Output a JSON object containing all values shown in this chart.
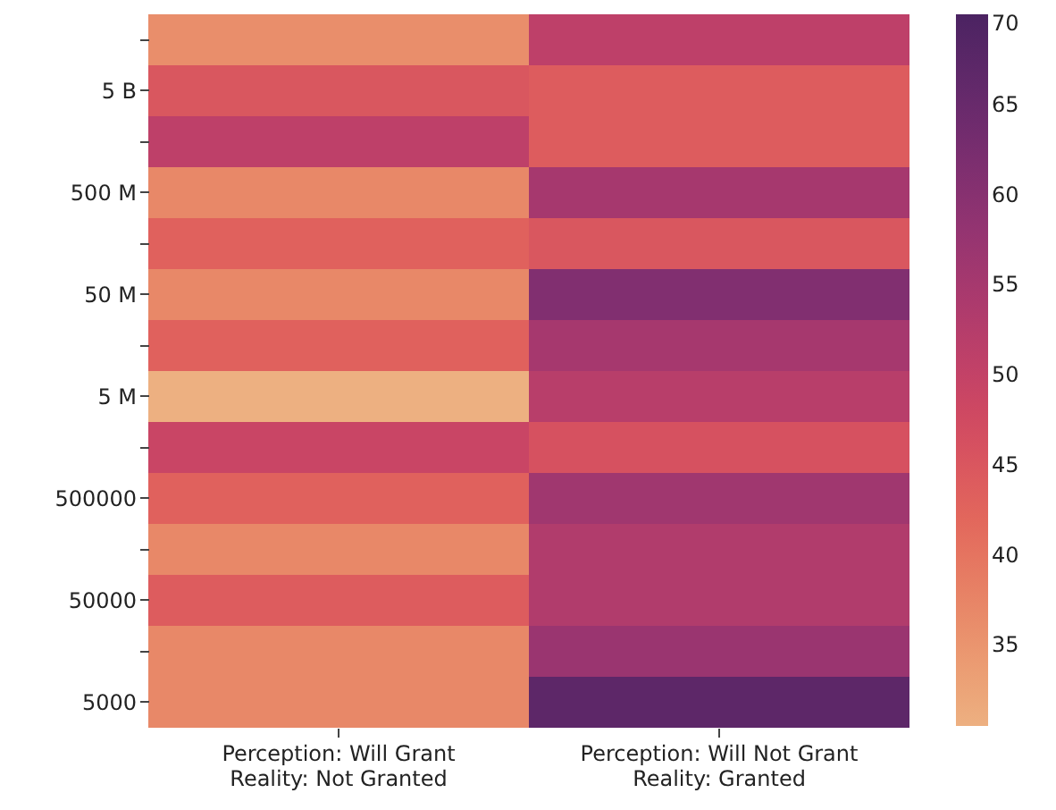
{
  "chart_data": {
    "type": "heatmap",
    "categories": [
      "Perception: Will Grant\nReality: Not Granted",
      "Perception: Will Not Grant\nReality: Granted"
    ],
    "y_categories": [
      null,
      "5 B",
      null,
      "500 M",
      null,
      "50 M",
      null,
      "5 M",
      null,
      "500000",
      null,
      "50000",
      null,
      "5000"
    ],
    "cells": [
      [
        36,
        51
      ],
      [
        45,
        44
      ],
      [
        51,
        44
      ],
      [
        37,
        55
      ],
      [
        43,
        45
      ],
      [
        37,
        61
      ],
      [
        43,
        55
      ],
      [
        30.5,
        52
      ],
      [
        49,
        46
      ],
      [
        43,
        56
      ],
      [
        37,
        53
      ],
      [
        44,
        53
      ],
      [
        37,
        57
      ],
      [
        37,
        67
      ]
    ],
    "clim": [
      30.5,
      70
    ],
    "cticks": [
      35,
      40,
      45,
      50,
      55,
      60,
      65,
      70
    ]
  }
}
